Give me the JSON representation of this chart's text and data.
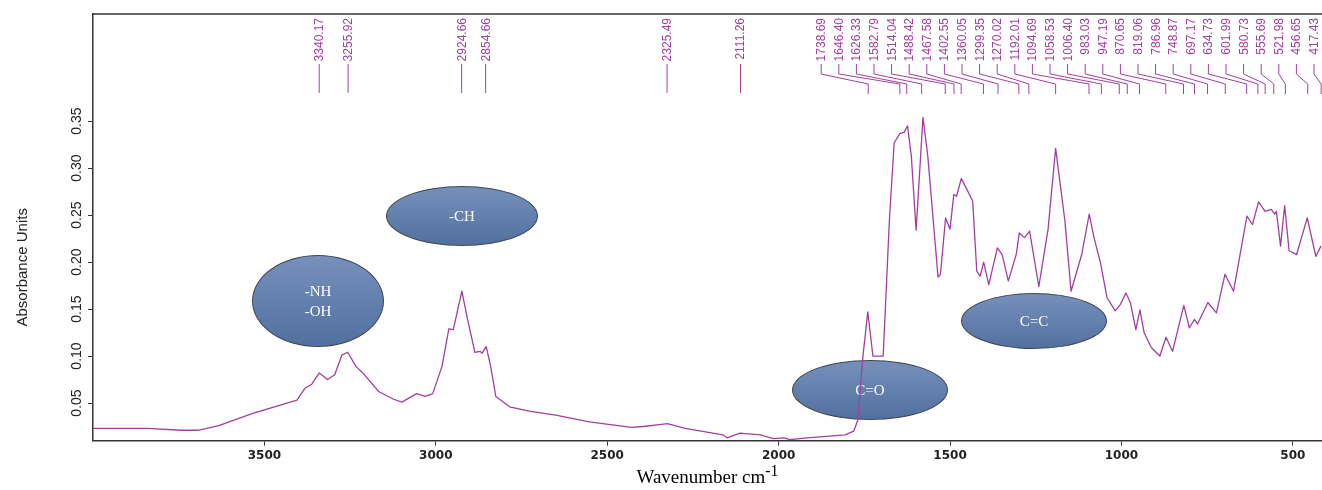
{
  "chart_data": {
    "type": "line",
    "xlabel": "Wavenumber cm$^{-1}$",
    "ylabel": "Absorbance Units",
    "xlim": [
      4000,
      415
    ],
    "ylim": [
      0.01,
      0.464
    ],
    "xticks": [
      3500,
      3000,
      2500,
      2000,
      1500,
      1000,
      500
    ],
    "yticks": [
      0.05,
      {
        "value": 0.1,
        "label": "0.10"
      },
      0.15,
      {
        "value": 0.2,
        "label": "0.20"
      },
      0.25,
      {
        "value": 0.3,
        "label": "0.30"
      },
      0.35
    ],
    "grid": false,
    "legend": false,
    "marker": "none",
    "line_style": "solid",
    "series": [
      {
        "color": "#a040a0",
        "x": [
          4000,
          3842,
          3743,
          3694,
          3633,
          3534,
          3461,
          3405,
          3381,
          3362,
          3340,
          3316,
          3295,
          3274,
          3257,
          3233,
          3208,
          3166,
          3123,
          3099,
          3056,
          3031,
          3009,
          2982,
          2962,
          2949,
          2924,
          2908,
          2886,
          2871,
          2865,
          2853,
          2840,
          2825,
          2785,
          2724,
          2650,
          2552,
          2429,
          2395,
          2347,
          2325,
          2273,
          2162,
          2150,
          2113,
          2052,
          2015,
          1984,
          1966,
          1916,
          1806,
          1781,
          1769,
          1754,
          1740,
          1725,
          1695,
          1677,
          1663,
          1646,
          1634,
          1624,
          1613,
          1599,
          1579,
          1565,
          1535,
          1528,
          1513,
          1500,
          1489,
          1481,
          1467,
          1449,
          1434,
          1422,
          1412,
          1402,
          1387,
          1362,
          1348,
          1330,
          1307,
          1298,
          1283,
          1268,
          1241,
          1214,
          1192,
          1178,
          1165,
          1147,
          1116,
          1094,
          1080,
          1061,
          1042,
          1018,
          1003,
          987,
          974,
          958,
          946,
          934,
          913,
          888,
          870,
          851,
          818,
          802,
          787,
          778,
          748,
          723,
          698,
          673,
          634,
          618,
          600,
          581,
          563,
          553,
          548,
          536,
          524,
          511,
          489,
          458,
          433,
          418
        ],
        "values": [
          0.023,
          0.023,
          0.021,
          0.021,
          0.026,
          0.039,
          0.047,
          0.053,
          0.066,
          0.07,
          0.082,
          0.075,
          0.08,
          0.101,
          0.104,
          0.089,
          0.08,
          0.062,
          0.054,
          0.051,
          0.06,
          0.057,
          0.06,
          0.089,
          0.129,
          0.128,
          0.169,
          0.14,
          0.104,
          0.105,
          0.103,
          0.11,
          0.089,
          0.057,
          0.046,
          0.041,
          0.037,
          0.03,
          0.024,
          0.025,
          0.027,
          0.028,
          0.023,
          0.016,
          0.013,
          0.018,
          0.016,
          0.012,
          0.013,
          0.011,
          0.013,
          0.016,
          0.02,
          0.032,
          0.1,
          0.147,
          0.1,
          0.1,
          0.244,
          0.327,
          0.337,
          0.338,
          0.345,
          0.313,
          0.234,
          0.354,
          0.313,
          0.184,
          0.187,
          0.247,
          0.235,
          0.272,
          0.27,
          0.289,
          0.276,
          0.265,
          0.19,
          0.185,
          0.2,
          0.176,
          0.215,
          0.208,
          0.18,
          0.208,
          0.231,
          0.226,
          0.233,
          0.174,
          0.235,
          0.321,
          0.281,
          0.244,
          0.169,
          0.208,
          0.251,
          0.226,
          0.199,
          0.162,
          0.148,
          0.155,
          0.167,
          0.157,
          0.128,
          0.149,
          0.125,
          0.109,
          0.1,
          0.12,
          0.105,
          0.154,
          0.13,
          0.139,
          0.134,
          0.157,
          0.146,
          0.187,
          0.169,
          0.249,
          0.24,
          0.264,
          0.254,
          0.256,
          0.251,
          0.254,
          0.217,
          0.26,
          0.212,
          0.208,
          0.247,
          0.206,
          0.217
        ]
      }
    ],
    "annotations": [
      "-NH\n-OH",
      "-CH",
      "C=O",
      "C=C",
      {
        "text": "3340.17",
        "x": 3340.17
      },
      {
        "text": "3255.92",
        "x": 3255.92
      },
      {
        "text": "2924.66",
        "x": 2924.66
      },
      {
        "text": "2854.66",
        "x": 2854.66
      },
      {
        "text": "2325.49",
        "x": 2325.49
      },
      {
        "text": "2111.26",
        "x": 2111.26
      },
      {
        "text": "1738.69",
        "x": 1738.69
      },
      {
        "text": "1646.40",
        "x": 1646.4
      },
      {
        "text": "1626.33",
        "x": 1626.33
      },
      {
        "text": "1582.79",
        "x": 1582.79
      },
      {
        "text": "1514.04",
        "x": 1514.04
      },
      {
        "text": "1488.42",
        "x": 1488.42
      },
      {
        "text": "1467.58",
        "x": 1467.58
      },
      {
        "text": "1402.55",
        "x": 1402.55
      },
      {
        "text": "1360.05",
        "x": 1360.05
      },
      {
        "text": "1299.35",
        "x": 1299.35
      },
      {
        "text": "1270.02",
        "x": 1270.02
      },
      {
        "text": "1192.01",
        "x": 1192.01
      },
      {
        "text": "1094.69",
        "x": 1094.69
      },
      {
        "text": "1058.53",
        "x": 1058.53
      },
      {
        "text": "1006.40",
        "x": 1006.4
      },
      {
        "text": "983.03",
        "x": 983.03
      },
      {
        "text": "947.19",
        "x": 947.19
      },
      {
        "text": "870.65",
        "x": 870.65
      },
      {
        "text": "819.06",
        "x": 819.06
      },
      {
        "text": "786.96",
        "x": 786.96
      },
      {
        "text": "748.87",
        "x": 748.87
      },
      {
        "text": "697.17",
        "x": 697.17
      },
      {
        "text": "634.73",
        "x": 634.73
      },
      {
        "text": "601.99",
        "x": 601.99
      },
      {
        "text": "580.73",
        "x": 580.73
      },
      {
        "text": "555.69",
        "x": 555.69
      },
      {
        "text": "521.98",
        "x": 521.98
      },
      {
        "text": "456.65",
        "x": 456.65
      },
      {
        "text": "417.43",
        "x": 417.43
      }
    ]
  }
}
